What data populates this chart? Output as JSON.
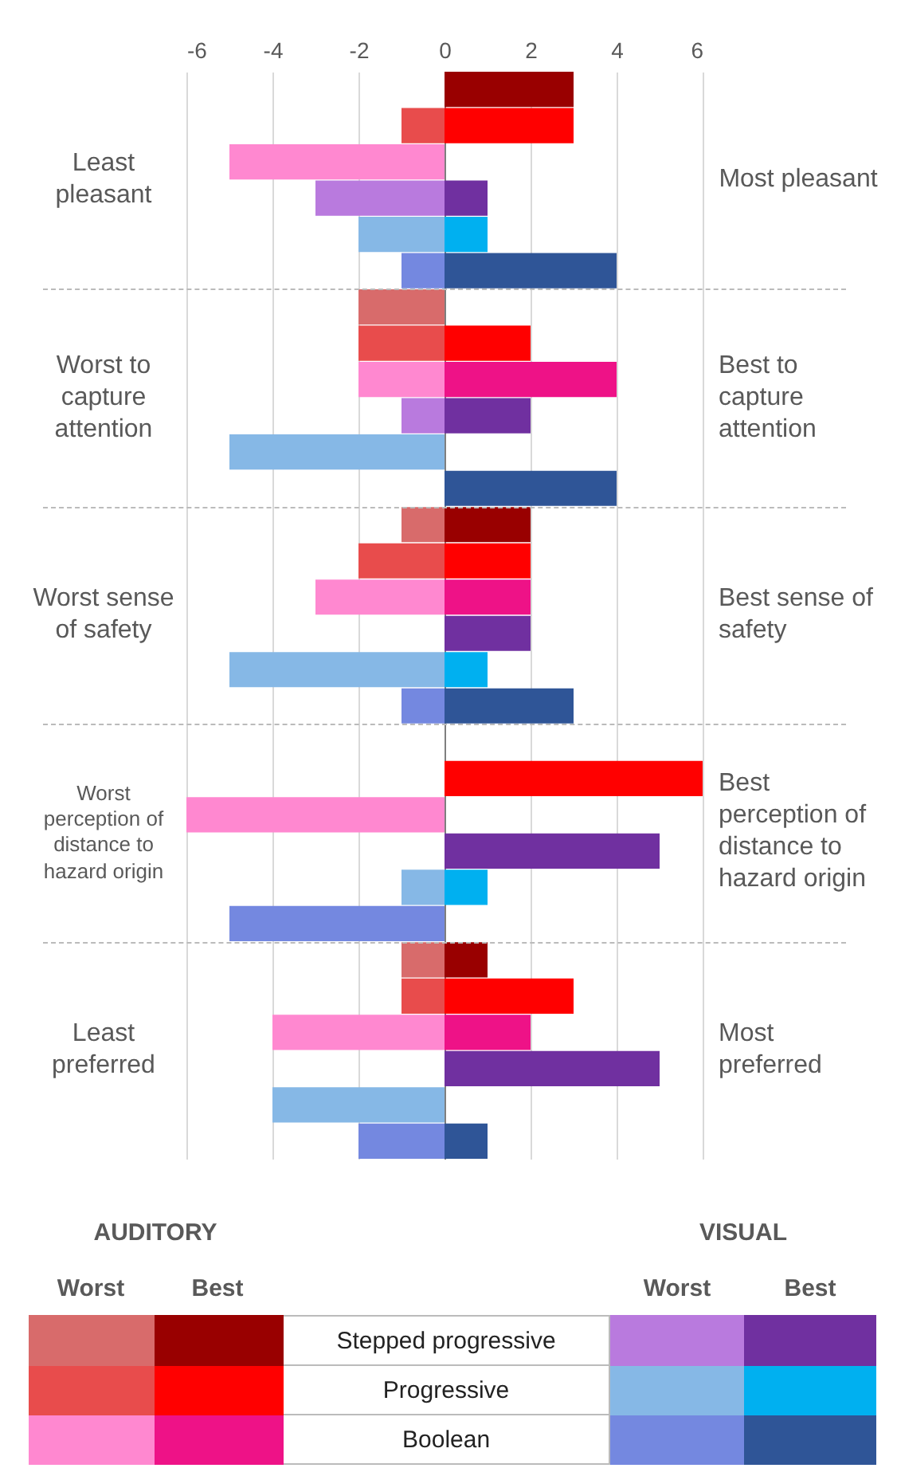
{
  "chart_data": {
    "type": "bar",
    "orientation": "horizontal",
    "categories": [
      null,
      null,
      null,
      null,
      null,
      null,
      null,
      null,
      null,
      null,
      null,
      null,
      null,
      null,
      null,
      null,
      null,
      null,
      null,
      null,
      null,
      null,
      null,
      null,
      null,
      null,
      null,
      null,
      null,
      null
    ],
    "series": [
      {
        "values": [
          null,
          -1,
          -5,
          -3,
          -2,
          -1,
          -2,
          -2,
          -2,
          -1,
          -5,
          null,
          -1,
          -2,
          -3,
          null,
          -5,
          -1,
          null,
          null,
          -6,
          null,
          -1,
          -5,
          -1,
          -1,
          -4,
          null,
          -4,
          -2
        ],
        "colors": [
          null,
          "#e84c4c",
          "#ff88d0",
          "#b97ade",
          "#86b8e6",
          "#7488e0",
          "#d86b6b",
          "#e84c4c",
          "#ff88d0",
          "#b97ade",
          "#86b8e6",
          null,
          "#d86b6b",
          "#e84c4c",
          "#ff88d0",
          null,
          "#86b8e6",
          "#7488e0",
          null,
          null,
          "#ff88d0",
          null,
          "#86b8e6",
          "#7488e0",
          "#d86b6b",
          "#e84c4c",
          "#ff88d0",
          null,
          "#86b8e6",
          "#7488e0"
        ]
      },
      {
        "values": [
          3,
          3,
          null,
          1,
          1,
          4,
          null,
          2,
          4,
          2,
          null,
          4,
          2,
          2,
          2,
          2,
          1,
          3,
          null,
          6,
          null,
          5,
          1,
          null,
          1,
          3,
          2,
          5,
          null,
          1
        ],
        "colors": [
          "#990000",
          "#ff0000",
          null,
          "#7030a0",
          "#00b0f0",
          "#2f5597",
          null,
          "#ff0000",
          "#ee1287",
          "#7030a0",
          null,
          "#2f5597",
          "#990000",
          "#ff0000",
          "#ee1287",
          "#7030a0",
          "#00b0f0",
          "#2f5597",
          null,
          "#ff0000",
          null,
          "#7030a0",
          "#00b0f0",
          null,
          "#990000",
          "#ff0000",
          "#ee1287",
          "#7030a0",
          null,
          "#2f5597"
        ]
      }
    ],
    "stacked": true,
    "xlim": [
      -6,
      6
    ],
    "xticks": [
      -6,
      -4,
      -2,
      0,
      2,
      4,
      6
    ],
    "grid": "x",
    "annotations": [
      "Least pleasant",
      "Worst to capture attention",
      "Worst sense of safety",
      "Worst perception of distance to hazard origin",
      "Least preferred",
      "Most pleasant",
      "Best to capture attention",
      "Best sense of safety",
      "Best perception of distance to hazard origin",
      "Most preferred",
      "AUDITORY",
      "VISUAL",
      "Worst",
      "Best",
      "Worst",
      "Best",
      "Stepped progressive",
      "Progressive",
      "Boolean"
    ]
  }
}
